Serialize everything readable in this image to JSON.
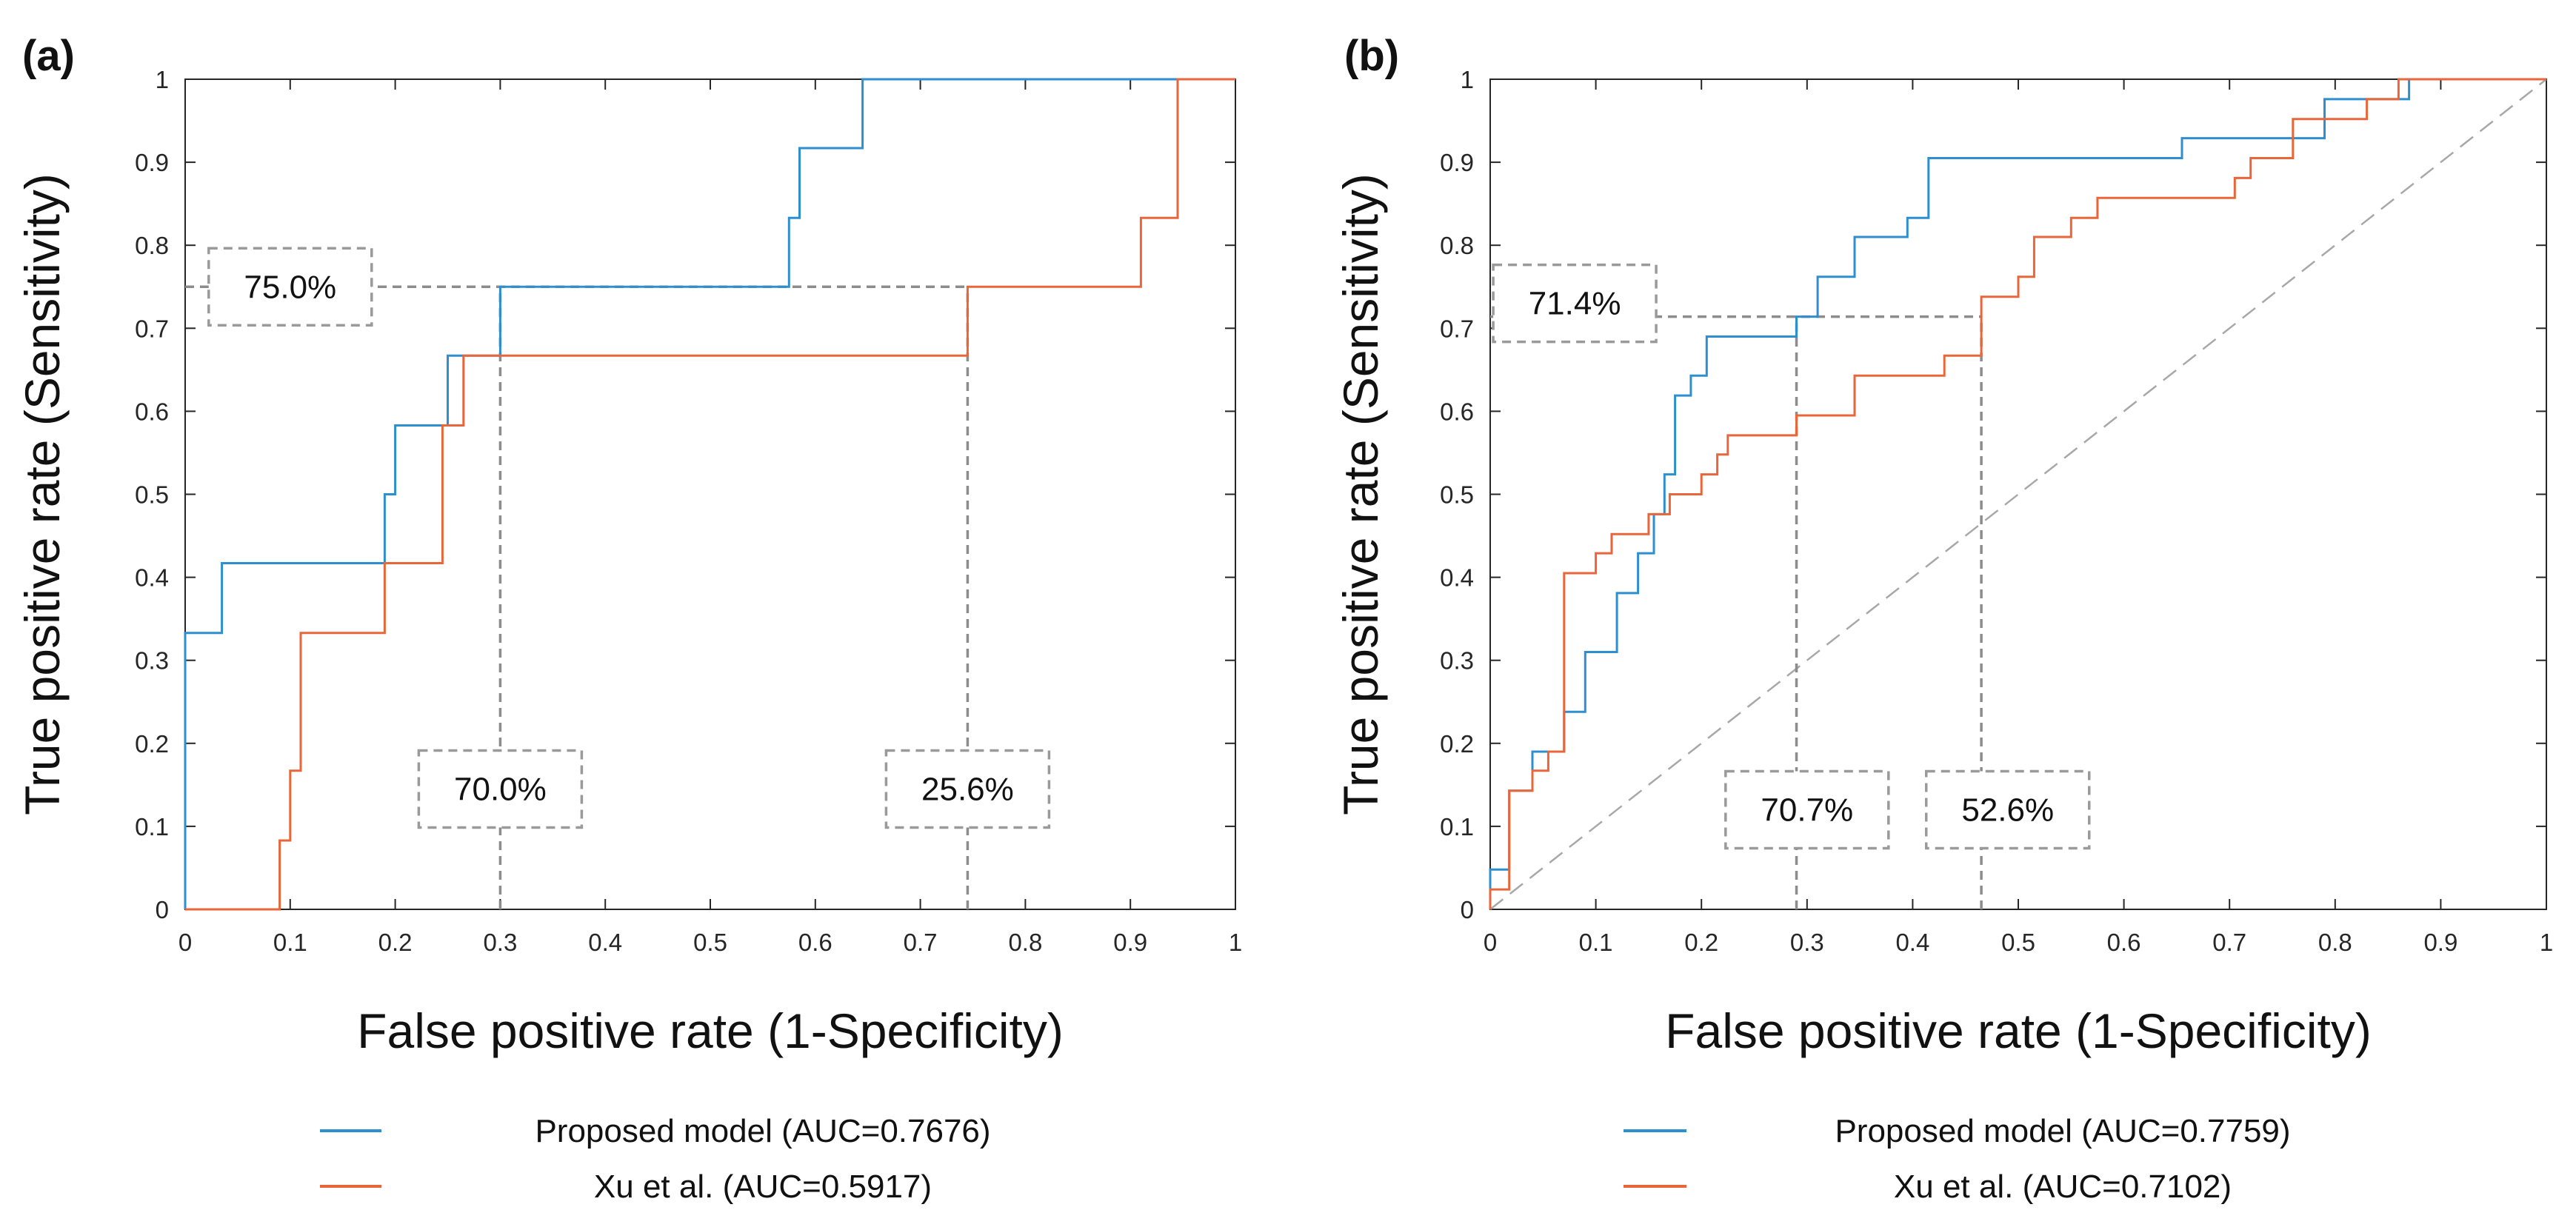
{
  "chart_data": [
    {
      "panel_label": "(a)",
      "type": "line",
      "xlabel": "False positive rate (1-Specificity)",
      "ylabel": "True positive rate (Sensitivity)",
      "xlim": [
        0,
        1
      ],
      "ylim": [
        0,
        1
      ],
      "xticks": [
        "0",
        "0.1",
        "0.2",
        "0.3",
        "0.4",
        "0.5",
        "0.6",
        "0.7",
        "0.8",
        "0.9",
        "1"
      ],
      "yticks": [
        "0",
        "0.1",
        "0.2",
        "0.3",
        "0.4",
        "0.5",
        "0.6",
        "0.7",
        "0.8",
        "0.9",
        "1"
      ],
      "grid": false,
      "diagonal": false,
      "series": [
        {
          "name": "Proposed model (AUC=0.7676)",
          "color": "#2e8fd0",
          "points": [
            [
              0,
              0
            ],
            [
              0,
              0.333
            ],
            [
              0.035,
              0.333
            ],
            [
              0.035,
              0.417
            ],
            [
              0.19,
              0.417
            ],
            [
              0.19,
              0.5
            ],
            [
              0.2,
              0.5
            ],
            [
              0.2,
              0.583
            ],
            [
              0.25,
              0.583
            ],
            [
              0.25,
              0.667
            ],
            [
              0.3,
              0.667
            ],
            [
              0.3,
              0.75
            ],
            [
              0.575,
              0.75
            ],
            [
              0.575,
              0.833
            ],
            [
              0.585,
              0.833
            ],
            [
              0.585,
              0.917
            ],
            [
              0.645,
              0.917
            ],
            [
              0.645,
              1.0
            ],
            [
              1.0,
              1.0
            ]
          ]
        },
        {
          "name": "Xu et al. (AUC=0.5917)",
          "color": "#e8663a",
          "points": [
            [
              0,
              0
            ],
            [
              0.09,
              0
            ],
            [
              0.09,
              0.083
            ],
            [
              0.1,
              0.083
            ],
            [
              0.1,
              0.167
            ],
            [
              0.11,
              0.167
            ],
            [
              0.11,
              0.333
            ],
            [
              0.19,
              0.333
            ],
            [
              0.19,
              0.417
            ],
            [
              0.245,
              0.417
            ],
            [
              0.245,
              0.583
            ],
            [
              0.265,
              0.583
            ],
            [
              0.265,
              0.667
            ],
            [
              0.745,
              0.667
            ],
            [
              0.745,
              0.75
            ],
            [
              0.91,
              0.75
            ],
            [
              0.91,
              0.833
            ],
            [
              0.945,
              0.833
            ],
            [
              0.945,
              1.0
            ],
            [
              1.0,
              1.0
            ]
          ]
        }
      ],
      "reference_lines": [
        {
          "kind": "h",
          "y": 0.75,
          "x_from": 0,
          "x_to": 0.745
        },
        {
          "kind": "v",
          "x": 0.3,
          "y_from": 0,
          "y_to": 0.75
        },
        {
          "kind": "v",
          "x": 0.745,
          "y_from": 0,
          "y_to": 0.75
        }
      ],
      "annotations": [
        {
          "text": "75.0%",
          "x": 0.1,
          "y": 0.75
        },
        {
          "text": "70.0%",
          "x": 0.3,
          "y": 0.145
        },
        {
          "text": "25.6%",
          "x": 0.745,
          "y": 0.145
        }
      ]
    },
    {
      "panel_label": "(b)",
      "type": "line",
      "xlabel": "False positive rate (1-Specificity)",
      "ylabel": "True positive rate (Sensitivity)",
      "xlim": [
        0,
        1
      ],
      "ylim": [
        0,
        1
      ],
      "xticks": [
        "0",
        "0.1",
        "0.2",
        "0.3",
        "0.4",
        "0.5",
        "0.6",
        "0.7",
        "0.8",
        "0.9",
        "1"
      ],
      "yticks": [
        "0",
        "0.1",
        "0.2",
        "0.3",
        "0.4",
        "0.5",
        "0.6",
        "0.7",
        "0.8",
        "0.9",
        "1"
      ],
      "grid": false,
      "diagonal": true,
      "series": [
        {
          "name": "Proposed model (AUC=0.7759)",
          "color": "#2e8fd0",
          "points": [
            [
              0,
              0
            ],
            [
              0,
              0.048
            ],
            [
              0.018,
              0.048
            ],
            [
              0.018,
              0.143
            ],
            [
              0.04,
              0.143
            ],
            [
              0.04,
              0.19
            ],
            [
              0.07,
              0.19
            ],
            [
              0.07,
              0.238
            ],
            [
              0.09,
              0.238
            ],
            [
              0.09,
              0.31
            ],
            [
              0.12,
              0.31
            ],
            [
              0.12,
              0.381
            ],
            [
              0.14,
              0.381
            ],
            [
              0.14,
              0.429
            ],
            [
              0.155,
              0.429
            ],
            [
              0.155,
              0.476
            ],
            [
              0.165,
              0.476
            ],
            [
              0.165,
              0.524
            ],
            [
              0.175,
              0.524
            ],
            [
              0.175,
              0.619
            ],
            [
              0.19,
              0.619
            ],
            [
              0.19,
              0.643
            ],
            [
              0.205,
              0.643
            ],
            [
              0.205,
              0.69
            ],
            [
              0.29,
              0.69
            ],
            [
              0.29,
              0.714
            ],
            [
              0.31,
              0.714
            ],
            [
              0.31,
              0.762
            ],
            [
              0.345,
              0.762
            ],
            [
              0.345,
              0.81
            ],
            [
              0.395,
              0.81
            ],
            [
              0.395,
              0.833
            ],
            [
              0.415,
              0.833
            ],
            [
              0.415,
              0.905
            ],
            [
              0.655,
              0.905
            ],
            [
              0.655,
              0.929
            ],
            [
              0.79,
              0.929
            ],
            [
              0.79,
              0.976
            ],
            [
              0.87,
              0.976
            ],
            [
              0.87,
              1.0
            ],
            [
              1.0,
              1.0
            ]
          ]
        },
        {
          "name": "Xu et al. (AUC=0.7102)",
          "color": "#e8663a",
          "points": [
            [
              0,
              0
            ],
            [
              0,
              0.024
            ],
            [
              0.018,
              0.024
            ],
            [
              0.018,
              0.143
            ],
            [
              0.04,
              0.143
            ],
            [
              0.04,
              0.167
            ],
            [
              0.055,
              0.167
            ],
            [
              0.055,
              0.19
            ],
            [
              0.07,
              0.19
            ],
            [
              0.07,
              0.405
            ],
            [
              0.1,
              0.405
            ],
            [
              0.1,
              0.429
            ],
            [
              0.115,
              0.429
            ],
            [
              0.115,
              0.452
            ],
            [
              0.15,
              0.452
            ],
            [
              0.15,
              0.476
            ],
            [
              0.17,
              0.476
            ],
            [
              0.17,
              0.5
            ],
            [
              0.2,
              0.5
            ],
            [
              0.2,
              0.524
            ],
            [
              0.215,
              0.524
            ],
            [
              0.215,
              0.548
            ],
            [
              0.225,
              0.548
            ],
            [
              0.225,
              0.571
            ],
            [
              0.29,
              0.571
            ],
            [
              0.29,
              0.595
            ],
            [
              0.345,
              0.595
            ],
            [
              0.345,
              0.643
            ],
            [
              0.43,
              0.643
            ],
            [
              0.43,
              0.667
            ],
            [
              0.465,
              0.667
            ],
            [
              0.465,
              0.738
            ],
            [
              0.5,
              0.738
            ],
            [
              0.5,
              0.762
            ],
            [
              0.515,
              0.762
            ],
            [
              0.515,
              0.81
            ],
            [
              0.55,
              0.81
            ],
            [
              0.55,
              0.833
            ],
            [
              0.575,
              0.833
            ],
            [
              0.575,
              0.857
            ],
            [
              0.705,
              0.857
            ],
            [
              0.705,
              0.881
            ],
            [
              0.72,
              0.881
            ],
            [
              0.72,
              0.905
            ],
            [
              0.76,
              0.905
            ],
            [
              0.76,
              0.952
            ],
            [
              0.83,
              0.952
            ],
            [
              0.83,
              0.976
            ],
            [
              0.86,
              0.976
            ],
            [
              0.86,
              1.0
            ],
            [
              1.0,
              1.0
            ]
          ]
        }
      ],
      "reference_lines": [
        {
          "kind": "h",
          "y": 0.714,
          "x_from": 0,
          "x_to": 0.465
        },
        {
          "kind": "v",
          "x": 0.29,
          "y_from": 0,
          "y_to": 0.714
        },
        {
          "kind": "v",
          "x": 0.465,
          "y_from": 0,
          "y_to": 0.714
        }
      ],
      "annotations": [
        {
          "text": "71.4%",
          "x": 0.08,
          "y": 0.73
        },
        {
          "text": "70.7%",
          "x": 0.3,
          "y": 0.12
        },
        {
          "text": "52.6%",
          "x": 0.49,
          "y": 0.12
        }
      ]
    }
  ]
}
